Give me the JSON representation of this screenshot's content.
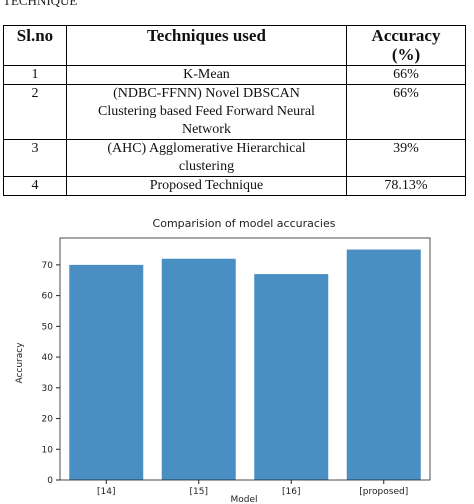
{
  "caption_fragment": "TECHNIQUE",
  "table": {
    "header": [
      "Sl.no",
      "Techniques used",
      "Accuracy (%)"
    ],
    "rows": [
      [
        "1",
        "K-Mean",
        "66%"
      ],
      [
        "2",
        "(NDBC-FFNN) Novel DBSCAN Clustering based Feed Forward Neural Network",
        "66%"
      ],
      [
        "3",
        "(AHC) Agglomerative Hierarchical clustering",
        "39%"
      ],
      [
        "4",
        "Proposed Technique",
        "78.13%"
      ]
    ]
  },
  "figure": {
    "type": "bar",
    "title": "Comparision of model accuracies",
    "x_label": "Model",
    "y_label": "Accuracy",
    "categories": [
      "[14]",
      "[15]",
      "[16]",
      "[proposed]"
    ],
    "values": [
      70,
      72,
      67,
      75
    ],
    "color": "#4a8fc4",
    "ylim": [
      0,
      78.75
    ],
    "yticks": [
      0,
      10,
      20,
      30,
      40,
      50,
      60,
      70
    ]
  }
}
